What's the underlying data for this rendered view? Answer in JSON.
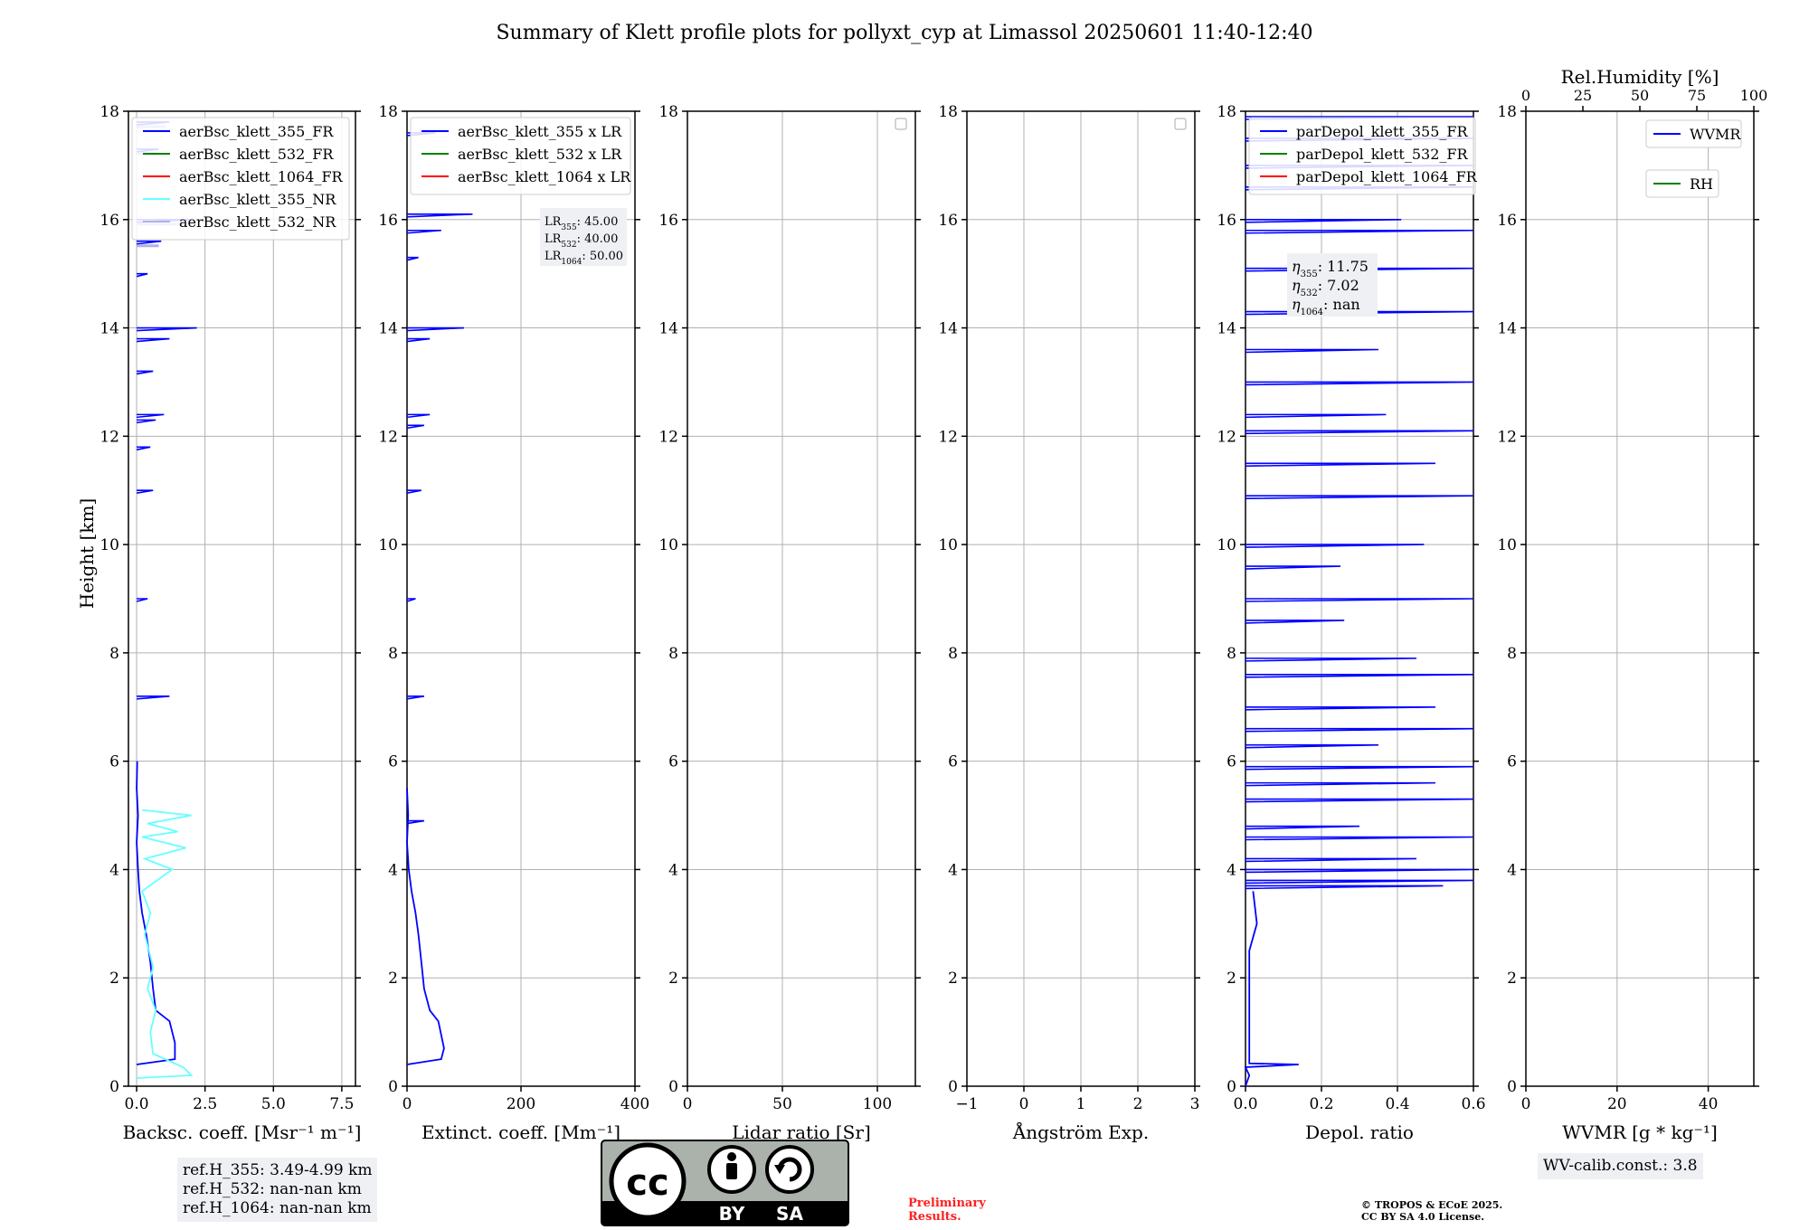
{
  "title": "Summary of Klett profile plots for pollyxt_cyp at Limassol 20250601 11:40-12:40",
  "ylabel": "Height [km]",
  "height_ticks": [
    "0",
    "2",
    "4",
    "6",
    "8",
    "10",
    "12",
    "14",
    "16",
    "18"
  ],
  "colors": {
    "blue": "#0000ff",
    "green": "#008000",
    "red": "#ff0000",
    "cyan": "#66ffff",
    "lavender": "#b0b0e8",
    "grid": "#b0b0b0"
  },
  "chart_data": [
    {
      "type": "line",
      "name": "backscatter",
      "xlabel": "Backsc. coeff. [Msr⁻¹ m⁻¹]",
      "xlim": [
        -0.3,
        8
      ],
      "ylim": [
        0,
        18
      ],
      "x_ticks": [
        "0.0",
        "2.5",
        "5.0",
        "7.5"
      ],
      "legend": [
        "aerBsc_klett_355_FR",
        "aerBsc_klett_532_FR",
        "aerBsc_klett_1064_FR",
        "aerBsc_klett_355_NR",
        "aerBsc_klett_532_NR"
      ],
      "legend_colors": [
        "#0000ff",
        "#008000",
        "#ff0000",
        "#66ffff",
        "#b0b0e8"
      ],
      "series": [
        {
          "name": "aerBsc_klett_355_FR",
          "color": "#0000ff",
          "points": [
            [
              0.0,
              0.4
            ],
            [
              1.4,
              0.5
            ],
            [
              1.4,
              0.8
            ],
            [
              1.2,
              1.2
            ],
            [
              0.7,
              1.4
            ],
            [
              0.6,
              1.8
            ],
            [
              0.5,
              2.3
            ],
            [
              0.35,
              2.8
            ],
            [
              0.2,
              3.2
            ],
            [
              0.1,
              3.6
            ],
            [
              0.05,
              4.0
            ],
            [
              0.0,
              4.5
            ],
            [
              0.05,
              5.0
            ],
            [
              0.0,
              5.5
            ],
            [
              0.02,
              6.0
            ]
          ]
        },
        {
          "name": "aerBsc_klett_355_NR",
          "color": "#66ffff",
          "points": [
            [
              0.0,
              0.15
            ],
            [
              2.0,
              0.2
            ],
            [
              1.7,
              0.35
            ],
            [
              0.6,
              0.6
            ],
            [
              0.5,
              1.0
            ],
            [
              0.7,
              1.4
            ],
            [
              0.4,
              1.8
            ],
            [
              0.6,
              2.2
            ],
            [
              0.3,
              2.8
            ],
            [
              0.5,
              3.2
            ],
            [
              0.2,
              3.6
            ],
            [
              1.3,
              4.0
            ],
            [
              0.3,
              4.2
            ],
            [
              1.8,
              4.4
            ],
            [
              0.2,
              4.6
            ],
            [
              1.5,
              4.7
            ],
            [
              0.4,
              4.85
            ],
            [
              2.0,
              5.0
            ],
            [
              0.2,
              5.1
            ]
          ]
        }
      ],
      "spikes": [
        [
          1.2,
          7.2
        ],
        [
          0.4,
          9.0
        ],
        [
          0.6,
          11.0
        ],
        [
          1.0,
          12.4
        ],
        [
          0.7,
          12.3
        ],
        [
          0.6,
          13.2
        ],
        [
          2.2,
          14.0
        ],
        [
          1.2,
          13.8
        ],
        [
          0.9,
          15.6
        ],
        [
          2.0,
          16.0
        ],
        [
          0.8,
          17.3
        ],
        [
          1.2,
          17.8
        ],
        [
          0.4,
          15.0
        ],
        [
          0.5,
          11.8
        ]
      ],
      "info": [
        "ref.H_355: 3.49-4.99 km",
        "ref.H_532: nan-nan km",
        "ref.H_1064: nan-nan km"
      ]
    },
    {
      "type": "line",
      "name": "extinction",
      "xlabel": "Extinct. coeff. [Mm⁻¹]",
      "xlim": [
        0,
        400
      ],
      "ylim": [
        0,
        18
      ],
      "x_ticks": [
        "0",
        "200",
        "400"
      ],
      "legend": [
        "aerBsc_klett_355 x LR",
        "aerBsc_klett_532 x LR",
        "aerBsc_klett_1064 x LR"
      ],
      "legend_colors": [
        "#0000ff",
        "#008000",
        "#ff0000"
      ],
      "series": [
        {
          "name": "aerBsc_klett_355 x LR",
          "color": "#0000ff",
          "points": [
            [
              0,
              0.4
            ],
            [
              60,
              0.5
            ],
            [
              65,
              0.7
            ],
            [
              55,
              1.2
            ],
            [
              40,
              1.4
            ],
            [
              30,
              1.8
            ],
            [
              25,
              2.3
            ],
            [
              20,
              2.8
            ],
            [
              15,
              3.2
            ],
            [
              8,
              3.6
            ],
            [
              3,
              4.0
            ],
            [
              0,
              4.5
            ],
            [
              2,
              5.0
            ],
            [
              0,
              5.5
            ]
          ]
        }
      ],
      "spikes": [
        [
          100,
          14.0
        ],
        [
          115,
          16.1
        ],
        [
          60,
          15.8
        ],
        [
          40,
          12.4
        ],
        [
          30,
          12.2
        ],
        [
          25,
          11.0
        ],
        [
          30,
          7.2
        ],
        [
          15,
          9.0
        ],
        [
          40,
          13.8
        ],
        [
          20,
          15.3
        ],
        [
          50,
          17.6
        ],
        [
          30,
          4.9
        ]
      ],
      "lr_info": [
        {
          "label": "LR",
          "sub": "355",
          "value": ": 45.00"
        },
        {
          "label": "LR",
          "sub": "532",
          "value": ": 40.00"
        },
        {
          "label": "LR",
          "sub": "1064",
          "value": ": 50.00"
        }
      ]
    },
    {
      "type": "line",
      "name": "lidar_ratio",
      "xlabel": "Lidar ratio [Sr]",
      "xlim": [
        0,
        120
      ],
      "ylim": [
        0,
        18
      ],
      "x_ticks": [
        "0",
        "50",
        "100"
      ],
      "series": []
    },
    {
      "type": "line",
      "name": "angstrom",
      "xlabel": "Ångström Exp.",
      "xlim": [
        -1,
        3
      ],
      "ylim": [
        0,
        18
      ],
      "x_ticks": [
        "−1",
        "0",
        "1",
        "2",
        "3"
      ],
      "series": []
    },
    {
      "type": "line",
      "name": "depol",
      "xlabel": "Depol. ratio",
      "xlim": [
        0,
        0.6
      ],
      "ylim": [
        0,
        18
      ],
      "x_ticks": [
        "0.0",
        "0.2",
        "0.4",
        "0.6"
      ],
      "legend": [
        "parDepol_klett_355_FR",
        "parDepol_klett_532_FR",
        "parDepol_klett_1064_FR"
      ],
      "legend_colors": [
        "#0000ff",
        "#008000",
        "#ff0000"
      ],
      "series": [
        {
          "name": "parDepol_klett_355_FR",
          "color": "#0000ff",
          "points": [
            [
              0.0,
              0.0
            ],
            [
              0.01,
              0.2
            ],
            [
              0.0,
              0.35
            ],
            [
              0.14,
              0.4
            ],
            [
              0.01,
              0.42
            ],
            [
              0.01,
              1.0
            ],
            [
              0.01,
              2.0
            ],
            [
              0.01,
              2.5
            ],
            [
              0.03,
              3.0
            ],
            [
              0.02,
              3.6
            ]
          ]
        }
      ],
      "spikes": [
        [
          0.52,
          3.7
        ],
        [
          0.6,
          3.8
        ],
        [
          0.6,
          4.0
        ],
        [
          0.45,
          4.2
        ],
        [
          0.6,
          4.6
        ],
        [
          0.3,
          4.8
        ],
        [
          0.6,
          5.3
        ],
        [
          0.5,
          5.6
        ],
        [
          0.6,
          5.9
        ],
        [
          0.35,
          6.3
        ],
        [
          0.6,
          6.6
        ],
        [
          0.5,
          7.0
        ],
        [
          0.6,
          7.6
        ],
        [
          0.45,
          7.9
        ],
        [
          0.26,
          8.6
        ],
        [
          0.6,
          9.0
        ],
        [
          0.25,
          9.6
        ],
        [
          0.47,
          10.0
        ],
        [
          0.6,
          10.9
        ],
        [
          0.5,
          11.5
        ],
        [
          0.6,
          12.1
        ],
        [
          0.37,
          12.4
        ],
        [
          0.6,
          13.0
        ],
        [
          0.35,
          13.6
        ],
        [
          0.6,
          14.3
        ],
        [
          0.6,
          15.1
        ],
        [
          0.6,
          15.8
        ],
        [
          0.41,
          16.0
        ],
        [
          0.6,
          16.6
        ],
        [
          0.6,
          17.0
        ],
        [
          0.6,
          17.5
        ],
        [
          0.6,
          17.9
        ]
      ],
      "eta_info": [
        {
          "label": "η",
          "sub": "355",
          "value": ": 11.75"
        },
        {
          "label": "η",
          "sub": "532",
          "value": ": 7.02"
        },
        {
          "label": "η",
          "sub": "1064",
          "value": ": nan"
        }
      ]
    },
    {
      "type": "line",
      "name": "wvmr",
      "xlabel": "WVMR [g * kg⁻¹]",
      "xlim": [
        0,
        50
      ],
      "ylim": [
        0,
        18
      ],
      "x_ticks": [
        "0",
        "20",
        "40"
      ],
      "top_xlabel": "Rel.Humidity [%]",
      "top_xlim": [
        0,
        100
      ],
      "top_ticks": [
        "0",
        "25",
        "50",
        "75",
        "100"
      ],
      "legend": [
        "WVMR",
        "RH"
      ],
      "legend_colors": [
        "#0000ff",
        "#008000"
      ],
      "series": [],
      "info": [
        "WV-calib.const.: 3.8"
      ]
    }
  ],
  "license": {
    "cc": "cc",
    "by": "BY",
    "sa": "SA"
  },
  "preliminary": [
    "Preliminary",
    "Results."
  ],
  "copyright": [
    "© TROPOS & ECoE 2025.",
    "CC BY SA 4.0 License."
  ]
}
